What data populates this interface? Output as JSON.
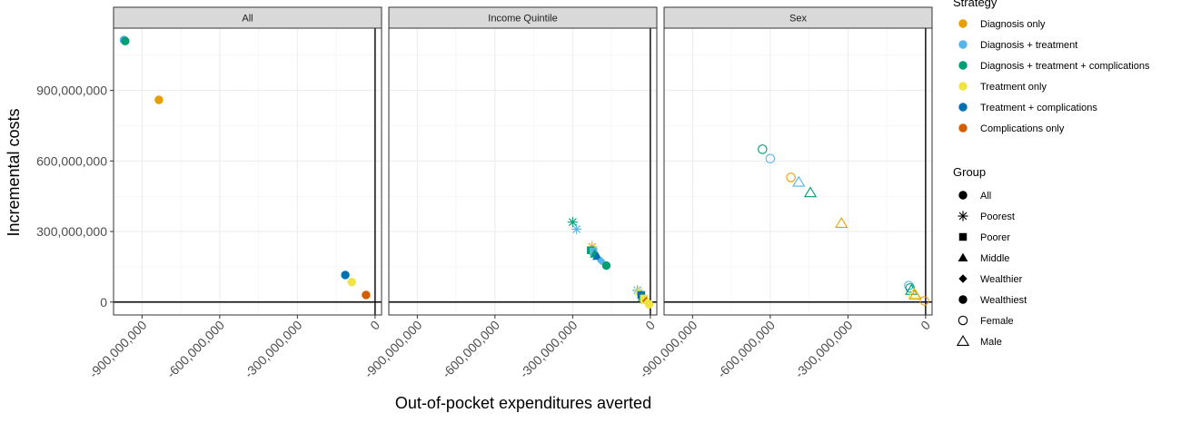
{
  "chart_data": {
    "type": "scatter",
    "xlabel": "Out-of-pocket expenditures averted",
    "ylabel": "Incremental costs",
    "xlim": [
      -1010000000,
      25000000
    ],
    "ylim": [
      -55000000,
      1165000000
    ],
    "x_ticks": [
      -900000000,
      -600000000,
      -300000000,
      0
    ],
    "x_tick_labels": [
      "-900,000,000",
      "-600,000,000",
      "-300,000,000",
      "0"
    ],
    "y_ticks": [
      0,
      300000000,
      600000000,
      900000000
    ],
    "y_tick_labels": [
      "0",
      "300,000,000",
      "600,000,000",
      "900,000,000"
    ],
    "reference_lines": {
      "x": 0,
      "y": 0
    },
    "grid": true,
    "legend_position": "right",
    "legends": [
      {
        "title": "Strategy",
        "entries": [
          {
            "label": "Diagnosis only",
            "color": "#E69F00"
          },
          {
            "label": "Diagnosis + treatment",
            "color": "#56B4E9"
          },
          {
            "label": "Diagnosis + treatment + complications",
            "color": "#009E73"
          },
          {
            "label": "Treatment only",
            "color": "#F0E442"
          },
          {
            "label": "Treatment + complications",
            "color": "#0072B2"
          },
          {
            "label": "Complications only",
            "color": "#D55E00"
          }
        ]
      },
      {
        "title": "Group",
        "entries": [
          {
            "label": "All",
            "shape": "circle"
          },
          {
            "label": "Poorest",
            "shape": "asterisk"
          },
          {
            "label": "Poorer",
            "shape": "square"
          },
          {
            "label": "Middle",
            "shape": "triangle"
          },
          {
            "label": "Wealthier",
            "shape": "diamond"
          },
          {
            "label": "Wealthiest",
            "shape": "circle"
          },
          {
            "label": "Female",
            "shape": "circle-open"
          },
          {
            "label": "Male",
            "shape": "triangle-open"
          }
        ]
      }
    ],
    "facets": [
      {
        "label": "All",
        "points": [
          {
            "x": -970000000,
            "y": 1115000000,
            "color": "#56B4E9",
            "shape": "circle"
          },
          {
            "x": -965000000,
            "y": 1110000000,
            "color": "#009E73",
            "shape": "circle"
          },
          {
            "x": -835000000,
            "y": 860000000,
            "color": "#E69F00",
            "shape": "circle"
          },
          {
            "x": -115000000,
            "y": 115000000,
            "color": "#0072B2",
            "shape": "circle"
          },
          {
            "x": -90000000,
            "y": 85000000,
            "color": "#F0E442",
            "shape": "circle"
          },
          {
            "x": -35000000,
            "y": 30000000,
            "color": "#D55E00",
            "shape": "circle"
          }
        ]
      },
      {
        "label": "Income Quintile",
        "points": [
          {
            "x": -300000000,
            "y": 340000000,
            "color": "#009E73",
            "shape": "asterisk"
          },
          {
            "x": -285000000,
            "y": 310000000,
            "color": "#56B4E9",
            "shape": "asterisk"
          },
          {
            "x": -225000000,
            "y": 235000000,
            "color": "#E69F00",
            "shape": "asterisk"
          },
          {
            "x": -230000000,
            "y": 220000000,
            "color": "#009E73",
            "shape": "square"
          },
          {
            "x": -220000000,
            "y": 215000000,
            "color": "#56B4E9",
            "shape": "square"
          },
          {
            "x": -215000000,
            "y": 205000000,
            "color": "#009E73",
            "shape": "triangle"
          },
          {
            "x": -205000000,
            "y": 195000000,
            "color": "#0072B2",
            "shape": "triangle"
          },
          {
            "x": -190000000,
            "y": 175000000,
            "color": "#56B4E9",
            "shape": "diamond"
          },
          {
            "x": -170000000,
            "y": 155000000,
            "color": "#009E73",
            "shape": "circle"
          },
          {
            "x": -50000000,
            "y": 50000000,
            "color": "#56B4E9",
            "shape": "asterisk"
          },
          {
            "x": -45000000,
            "y": 45000000,
            "color": "#F0E442",
            "shape": "asterisk"
          },
          {
            "x": -35000000,
            "y": 30000000,
            "color": "#0072B2",
            "shape": "square"
          },
          {
            "x": -30000000,
            "y": 20000000,
            "color": "#009E73",
            "shape": "triangle"
          },
          {
            "x": -25000000,
            "y": 15000000,
            "color": "#F0E442",
            "shape": "square"
          },
          {
            "x": -20000000,
            "y": 8000000,
            "color": "#F0E442",
            "shape": "triangle"
          },
          {
            "x": -15000000,
            "y": 5000000,
            "color": "#D55E00",
            "shape": "diamond"
          },
          {
            "x": -10000000,
            "y": 0,
            "color": "#F0E442",
            "shape": "diamond"
          },
          {
            "x": -5000000,
            "y": -10000000,
            "color": "#F0E442",
            "shape": "circle"
          }
        ]
      },
      {
        "label": "Sex",
        "points": [
          {
            "x": -630000000,
            "y": 650000000,
            "color": "#009E73",
            "shape": "circle-open"
          },
          {
            "x": -600000000,
            "y": 610000000,
            "color": "#56B4E9",
            "shape": "circle-open"
          },
          {
            "x": -520000000,
            "y": 530000000,
            "color": "#E69F00",
            "shape": "circle-open"
          },
          {
            "x": -490000000,
            "y": 510000000,
            "color": "#56B4E9",
            "shape": "triangle-open"
          },
          {
            "x": -445000000,
            "y": 465000000,
            "color": "#009E73",
            "shape": "triangle-open"
          },
          {
            "x": -325000000,
            "y": 335000000,
            "color": "#E69F00",
            "shape": "triangle-open"
          },
          {
            "x": -65000000,
            "y": 70000000,
            "color": "#56B4E9",
            "shape": "circle-open"
          },
          {
            "x": -60000000,
            "y": 60000000,
            "color": "#009E73",
            "shape": "circle-open"
          },
          {
            "x": -55000000,
            "y": 50000000,
            "color": "#009E73",
            "shape": "triangle-open"
          },
          {
            "x": -45000000,
            "y": 35000000,
            "color": "#F0E442",
            "shape": "triangle-open"
          },
          {
            "x": -40000000,
            "y": 30000000,
            "color": "#E69F00",
            "shape": "triangle-open"
          },
          {
            "x": -5000000,
            "y": 5000000,
            "color": "#E69F00",
            "shape": "circle-open"
          }
        ]
      }
    ]
  }
}
